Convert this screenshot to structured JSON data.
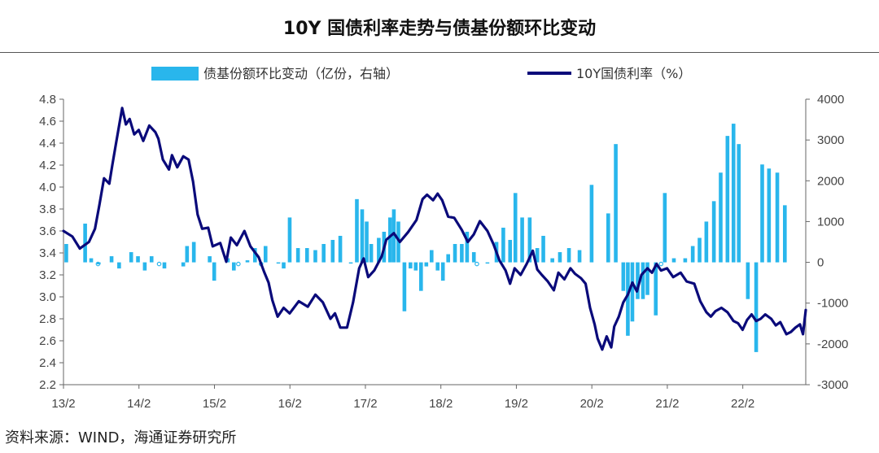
{
  "title": "10Y 国债利率走势与债基份额环比变动",
  "source": "资料来源：WIND，海通证券研究所",
  "chart_data": {
    "type": "bar+line",
    "x_start": 2013.083,
    "x_end": 2022.917,
    "x_ticks": [
      {
        "label": "13/2",
        "x": 2013.083
      },
      {
        "label": "14/2",
        "x": 2014.083
      },
      {
        "label": "15/2",
        "x": 2015.083
      },
      {
        "label": "16/2",
        "x": 2016.083
      },
      {
        "label": "17/2",
        "x": 2017.083
      },
      {
        "label": "18/2",
        "x": 2018.083
      },
      {
        "label": "19/2",
        "x": 2019.083
      },
      {
        "label": "20/2",
        "x": 2020.083
      },
      {
        "label": "21/2",
        "x": 2021.083
      },
      {
        "label": "22/2",
        "x": 2022.083
      }
    ],
    "left_axis": {
      "label": "10Y国债利率（%）",
      "min": 2.2,
      "max": 4.8,
      "ticks": [
        "4.8",
        "4.6",
        "4.4",
        "4.2",
        "4.0",
        "3.8",
        "3.6",
        "3.4",
        "3.2",
        "3.0",
        "2.8",
        "2.6",
        "2.4",
        "2.2"
      ]
    },
    "right_axis": {
      "label": "债基份额环比变动（亿份，右轴）",
      "min": -3000,
      "max": 4000,
      "ticks": [
        "4000",
        "3000",
        "2000",
        "1000",
        "0",
        "-1000",
        "-2000",
        "-3000"
      ]
    },
    "legend": [
      {
        "name": "债基份额环比变动（亿份，右轴）",
        "color": "#29b6ec",
        "kind": "bar"
      },
      {
        "name": "10Y国债利率（%）",
        "color": "#0a0a7a",
        "kind": "line"
      }
    ],
    "series": [
      {
        "name": "债基份额环比变动（亿份，右轴）",
        "axis": "right",
        "bars": [
          [
            2013.12,
            450
          ],
          [
            2013.37,
            950
          ],
          [
            2013.45,
            100
          ],
          [
            2013.55,
            -50
          ],
          [
            2013.72,
            150
          ],
          [
            2013.82,
            -150
          ],
          [
            2013.98,
            250
          ],
          [
            2014.07,
            150
          ],
          [
            2014.16,
            -200
          ],
          [
            2014.25,
            150
          ],
          [
            2014.42,
            -150
          ],
          [
            2014.67,
            -100
          ],
          [
            2014.72,
            400
          ],
          [
            2014.81,
            500
          ],
          [
            2015.02,
            150
          ],
          [
            2015.08,
            -450
          ],
          [
            2015.26,
            100
          ],
          [
            2015.34,
            -200
          ],
          [
            2015.52,
            50
          ],
          [
            2015.62,
            350
          ],
          [
            2015.76,
            400
          ],
          [
            2015.93,
            0
          ],
          [
            2016.0,
            -150
          ],
          [
            2016.08,
            1100
          ],
          [
            2016.19,
            350
          ],
          [
            2016.31,
            350
          ],
          [
            2016.42,
            300
          ],
          [
            2016.53,
            450
          ],
          [
            2016.65,
            550
          ],
          [
            2016.75,
            650
          ],
          [
            2016.89,
            0
          ],
          [
            2016.97,
            1550
          ],
          [
            2017.04,
            1300
          ],
          [
            2017.1,
            1000
          ],
          [
            2017.16,
            450
          ],
          [
            2017.26,
            600
          ],
          [
            2017.33,
            750
          ],
          [
            2017.41,
            1100
          ],
          [
            2017.46,
            1300
          ],
          [
            2017.52,
            1000
          ],
          [
            2017.6,
            -1200
          ],
          [
            2017.68,
            -150
          ],
          [
            2017.75,
            -200
          ],
          [
            2017.82,
            -700
          ],
          [
            2017.89,
            -100
          ],
          [
            2017.96,
            300
          ],
          [
            2018.04,
            -200
          ],
          [
            2018.11,
            -450
          ],
          [
            2018.18,
            200
          ],
          [
            2018.27,
            450
          ],
          [
            2018.36,
            450
          ],
          [
            2018.43,
            750
          ],
          [
            2018.52,
            250
          ],
          [
            2018.7,
            0
          ],
          [
            2018.82,
            500
          ],
          [
            2018.91,
            850
          ],
          [
            2019.0,
            550
          ],
          [
            2019.07,
            1700
          ],
          [
            2019.16,
            1100
          ],
          [
            2019.26,
            1100
          ],
          [
            2019.36,
            350
          ],
          [
            2019.44,
            650
          ],
          [
            2019.56,
            100
          ],
          [
            2019.66,
            250
          ],
          [
            2019.78,
            350
          ],
          [
            2019.92,
            300
          ],
          [
            2020.08,
            1900
          ],
          [
            2020.3,
            1200
          ],
          [
            2020.4,
            2900
          ],
          [
            2020.5,
            -700
          ],
          [
            2020.56,
            -1800
          ],
          [
            2020.62,
            -1450
          ],
          [
            2020.69,
            -900
          ],
          [
            2020.76,
            -900
          ],
          [
            2020.82,
            -800
          ],
          [
            2020.93,
            -1300
          ],
          [
            2021.05,
            1700
          ],
          [
            2021.17,
            100
          ],
          [
            2021.32,
            100
          ],
          [
            2021.42,
            400
          ],
          [
            2021.51,
            600
          ],
          [
            2021.6,
            1000
          ],
          [
            2021.7,
            1500
          ],
          [
            2021.79,
            2200
          ],
          [
            2021.88,
            3100
          ],
          [
            2021.96,
            3400
          ],
          [
            2022.03,
            2900
          ],
          [
            2022.15,
            -900
          ],
          [
            2022.26,
            -2200
          ],
          [
            2022.34,
            2400
          ],
          [
            2022.43,
            2300
          ],
          [
            2022.54,
            2200
          ],
          [
            2022.64,
            1400
          ]
        ],
        "small_markers": [
          2013.54,
          2014.35,
          2015.4,
          2015.7,
          2018.56,
          2021.0
        ]
      },
      {
        "name": "10Y国债利率（%）",
        "axis": "left",
        "points": [
          [
            2013.083,
            3.6
          ],
          [
            2013.2,
            3.55
          ],
          [
            2013.3,
            3.44
          ],
          [
            2013.42,
            3.5
          ],
          [
            2013.5,
            3.62
          ],
          [
            2013.56,
            3.84
          ],
          [
            2013.62,
            4.08
          ],
          [
            2013.69,
            4.03
          ],
          [
            2013.73,
            4.2
          ],
          [
            2013.78,
            4.4
          ],
          [
            2013.86,
            4.72
          ],
          [
            2013.91,
            4.57
          ],
          [
            2013.96,
            4.62
          ],
          [
            2014.02,
            4.48
          ],
          [
            2014.08,
            4.52
          ],
          [
            2014.14,
            4.42
          ],
          [
            2014.22,
            4.56
          ],
          [
            2014.3,
            4.5
          ],
          [
            2014.34,
            4.44
          ],
          [
            2014.4,
            4.25
          ],
          [
            2014.48,
            4.16
          ],
          [
            2014.52,
            4.29
          ],
          [
            2014.59,
            4.18
          ],
          [
            2014.67,
            4.28
          ],
          [
            2014.74,
            4.25
          ],
          [
            2014.8,
            4.05
          ],
          [
            2014.86,
            3.75
          ],
          [
            2014.92,
            3.62
          ],
          [
            2015.0,
            3.63
          ],
          [
            2015.06,
            3.46
          ],
          [
            2015.16,
            3.49
          ],
          [
            2015.24,
            3.32
          ],
          [
            2015.3,
            3.54
          ],
          [
            2015.38,
            3.47
          ],
          [
            2015.48,
            3.6
          ],
          [
            2015.56,
            3.46
          ],
          [
            2015.67,
            3.36
          ],
          [
            2015.74,
            3.23
          ],
          [
            2015.8,
            3.13
          ],
          [
            2015.85,
            2.97
          ],
          [
            2015.92,
            2.82
          ],
          [
            2016.0,
            2.9
          ],
          [
            2016.08,
            2.85
          ],
          [
            2016.2,
            2.96
          ],
          [
            2016.32,
            2.91
          ],
          [
            2016.42,
            3.02
          ],
          [
            2016.52,
            2.95
          ],
          [
            2016.62,
            2.8
          ],
          [
            2016.68,
            2.85
          ],
          [
            2016.75,
            2.72
          ],
          [
            2016.84,
            2.72
          ],
          [
            2016.92,
            2.95
          ],
          [
            2017.0,
            3.26
          ],
          [
            2017.06,
            3.35
          ],
          [
            2017.12,
            3.18
          ],
          [
            2017.2,
            3.24
          ],
          [
            2017.3,
            3.37
          ],
          [
            2017.36,
            3.52
          ],
          [
            2017.46,
            3.58
          ],
          [
            2017.54,
            3.5
          ],
          [
            2017.65,
            3.59
          ],
          [
            2017.76,
            3.7
          ],
          [
            2017.84,
            3.89
          ],
          [
            2017.9,
            3.93
          ],
          [
            2017.98,
            3.88
          ],
          [
            2018.04,
            3.94
          ],
          [
            2018.1,
            3.88
          ],
          [
            2018.18,
            3.73
          ],
          [
            2018.26,
            3.72
          ],
          [
            2018.36,
            3.61
          ],
          [
            2018.44,
            3.5
          ],
          [
            2018.52,
            3.57
          ],
          [
            2018.6,
            3.69
          ],
          [
            2018.7,
            3.6
          ],
          [
            2018.78,
            3.48
          ],
          [
            2018.86,
            3.33
          ],
          [
            2018.94,
            3.24
          ],
          [
            2019.0,
            3.12
          ],
          [
            2019.06,
            3.26
          ],
          [
            2019.14,
            3.2
          ],
          [
            2019.22,
            3.3
          ],
          [
            2019.3,
            3.42
          ],
          [
            2019.36,
            3.25
          ],
          [
            2019.42,
            3.2
          ],
          [
            2019.5,
            3.14
          ],
          [
            2019.58,
            3.06
          ],
          [
            2019.64,
            3.22
          ],
          [
            2019.72,
            3.16
          ],
          [
            2019.8,
            3.26
          ],
          [
            2019.86,
            3.21
          ],
          [
            2019.94,
            3.17
          ],
          [
            2020.0,
            3.12
          ],
          [
            2020.06,
            2.9
          ],
          [
            2020.12,
            2.75
          ],
          [
            2020.16,
            2.62
          ],
          [
            2020.22,
            2.52
          ],
          [
            2020.28,
            2.64
          ],
          [
            2020.34,
            2.54
          ],
          [
            2020.38,
            2.73
          ],
          [
            2020.44,
            2.82
          ],
          [
            2020.5,
            2.95
          ],
          [
            2020.56,
            3.02
          ],
          [
            2020.62,
            3.13
          ],
          [
            2020.68,
            3.05
          ],
          [
            2020.74,
            3.2
          ],
          [
            2020.82,
            3.26
          ],
          [
            2020.88,
            3.22
          ],
          [
            2020.94,
            3.3
          ],
          [
            2021.0,
            3.24
          ],
          [
            2021.08,
            3.26
          ],
          [
            2021.16,
            3.18
          ],
          [
            2021.26,
            3.22
          ],
          [
            2021.34,
            3.14
          ],
          [
            2021.44,
            3.12
          ],
          [
            2021.52,
            2.96
          ],
          [
            2021.6,
            2.86
          ],
          [
            2021.66,
            2.82
          ],
          [
            2021.72,
            2.87
          ],
          [
            2021.8,
            2.9
          ],
          [
            2021.88,
            2.86
          ],
          [
            2021.96,
            2.78
          ],
          [
            2022.02,
            2.76
          ],
          [
            2022.08,
            2.7
          ],
          [
            2022.14,
            2.79
          ],
          [
            2022.2,
            2.84
          ],
          [
            2022.26,
            2.78
          ],
          [
            2022.32,
            2.8
          ],
          [
            2022.38,
            2.84
          ],
          [
            2022.46,
            2.8
          ],
          [
            2022.52,
            2.74
          ],
          [
            2022.58,
            2.77
          ],
          [
            2022.66,
            2.66
          ],
          [
            2022.72,
            2.68
          ],
          [
            2022.78,
            2.72
          ],
          [
            2022.84,
            2.75
          ],
          [
            2022.88,
            2.66
          ],
          [
            2022.917,
            2.88
          ]
        ]
      }
    ]
  }
}
